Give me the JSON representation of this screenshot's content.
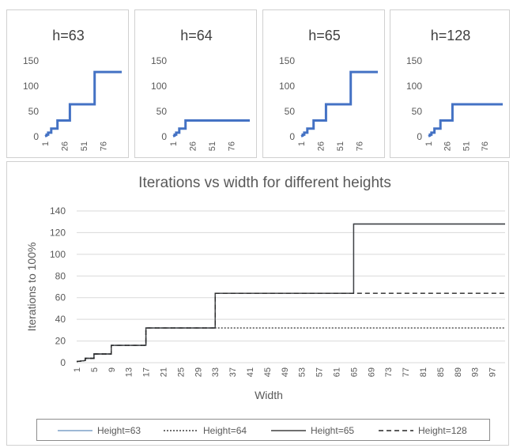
{
  "chart_data": [
    {
      "type": "line",
      "title": "h=63",
      "x_ticks": [
        "1",
        "26",
        "51",
        "76"
      ],
      "y_ticks": [
        "0",
        "50",
        "100",
        "150"
      ],
      "ylim": [
        0,
        150
      ],
      "xlim": [
        1,
        100
      ],
      "series": [
        {
          "color": "#4472c4",
          "points": [
            [
              1,
              1
            ],
            [
              3,
              2
            ],
            [
              3,
              4
            ],
            [
              5,
              4
            ],
            [
              5,
              8
            ],
            [
              9,
              8
            ],
            [
              9,
              16
            ],
            [
              17,
              16
            ],
            [
              17,
              32
            ],
            [
              33,
              32
            ],
            [
              33,
              64
            ],
            [
              65,
              64
            ],
            [
              65,
              128
            ],
            [
              100,
              128
            ]
          ]
        }
      ]
    },
    {
      "type": "line",
      "title": "h=64",
      "x_ticks": [
        "1",
        "26",
        "51",
        "76"
      ],
      "y_ticks": [
        "0",
        "50",
        "100",
        "150"
      ],
      "ylim": [
        0,
        150
      ],
      "xlim": [
        1,
        100
      ],
      "series": [
        {
          "color": "#4472c4",
          "points": [
            [
              1,
              1
            ],
            [
              3,
              2
            ],
            [
              3,
              4
            ],
            [
              5,
              4
            ],
            [
              5,
              8
            ],
            [
              9,
              8
            ],
            [
              9,
              16
            ],
            [
              17,
              16
            ],
            [
              17,
              32
            ],
            [
              100,
              32
            ]
          ]
        }
      ]
    },
    {
      "type": "line",
      "title": "h=65",
      "x_ticks": [
        "1",
        "26",
        "51",
        "76"
      ],
      "y_ticks": [
        "0",
        "50",
        "100",
        "150"
      ],
      "ylim": [
        0,
        150
      ],
      "xlim": [
        1,
        100
      ],
      "series": [
        {
          "color": "#4472c4",
          "points": [
            [
              1,
              1
            ],
            [
              3,
              2
            ],
            [
              3,
              4
            ],
            [
              5,
              4
            ],
            [
              5,
              8
            ],
            [
              9,
              8
            ],
            [
              9,
              16
            ],
            [
              17,
              16
            ],
            [
              17,
              32
            ],
            [
              33,
              32
            ],
            [
              33,
              64
            ],
            [
              65,
              64
            ],
            [
              65,
              128
            ],
            [
              100,
              128
            ]
          ]
        }
      ]
    },
    {
      "type": "line",
      "title": "h=128",
      "x_ticks": [
        "1",
        "26",
        "51",
        "76"
      ],
      "y_ticks": [
        "0",
        "50",
        "100",
        "150"
      ],
      "ylim": [
        0,
        150
      ],
      "xlim": [
        1,
        100
      ],
      "series": [
        {
          "color": "#4472c4",
          "points": [
            [
              1,
              1
            ],
            [
              3,
              2
            ],
            [
              3,
              4
            ],
            [
              5,
              4
            ],
            [
              5,
              8
            ],
            [
              9,
              8
            ],
            [
              9,
              16
            ],
            [
              17,
              16
            ],
            [
              17,
              32
            ],
            [
              33,
              32
            ],
            [
              33,
              64
            ],
            [
              100,
              64
            ]
          ]
        }
      ]
    },
    {
      "type": "line",
      "title": "Iterations vs width for different heights",
      "xlabel": "Width",
      "ylabel": "Iterations to 100%",
      "ylim": [
        0,
        140
      ],
      "xlim": [
        1,
        100
      ],
      "y_ticks": [
        "0",
        "20",
        "40",
        "60",
        "80",
        "100",
        "120",
        "140"
      ],
      "x_ticks": [
        "1",
        "5",
        "9",
        "13",
        "17",
        "21",
        "25",
        "29",
        "33",
        "37",
        "41",
        "45",
        "49",
        "53",
        "57",
        "61",
        "65",
        "69",
        "73",
        "77",
        "81",
        "85",
        "89",
        "93",
        "97"
      ],
      "grid": true,
      "legend_position": "bottom",
      "series": [
        {
          "name": "Height=63",
          "color": "#7fa0c8",
          "dash": "solid",
          "points": [
            [
              1,
              1
            ],
            [
              3,
              2
            ],
            [
              3,
              4
            ],
            [
              5,
              4
            ],
            [
              5,
              8
            ],
            [
              9,
              8
            ],
            [
              9,
              16
            ],
            [
              17,
              16
            ],
            [
              17,
              32
            ],
            [
              33,
              32
            ],
            [
              33,
              64
            ],
            [
              65,
              64
            ],
            [
              65,
              128
            ],
            [
              100,
              128
            ]
          ]
        },
        {
          "name": "Height=64",
          "color": "#404040",
          "dash": "dotted",
          "points": [
            [
              1,
              1
            ],
            [
              3,
              2
            ],
            [
              3,
              4
            ],
            [
              5,
              4
            ],
            [
              5,
              8
            ],
            [
              9,
              8
            ],
            [
              9,
              16
            ],
            [
              17,
              16
            ],
            [
              17,
              32
            ],
            [
              100,
              32
            ]
          ]
        },
        {
          "name": "Height=65",
          "color": "#404040",
          "dash": "solid",
          "points": [
            [
              1,
              1
            ],
            [
              3,
              2
            ],
            [
              3,
              4
            ],
            [
              5,
              4
            ],
            [
              5,
              8
            ],
            [
              9,
              8
            ],
            [
              9,
              16
            ],
            [
              17,
              16
            ],
            [
              17,
              32
            ],
            [
              33,
              32
            ],
            [
              33,
              64
            ],
            [
              65,
              64
            ],
            [
              65,
              128
            ],
            [
              100,
              128
            ]
          ]
        },
        {
          "name": "Height=128",
          "color": "#262626",
          "dash": "dashed",
          "points": [
            [
              1,
              1
            ],
            [
              3,
              2
            ],
            [
              3,
              4
            ],
            [
              5,
              4
            ],
            [
              5,
              8
            ],
            [
              9,
              8
            ],
            [
              9,
              16
            ],
            [
              17,
              16
            ],
            [
              17,
              32
            ],
            [
              33,
              32
            ],
            [
              33,
              64
            ],
            [
              100,
              64
            ]
          ]
        }
      ]
    }
  ]
}
